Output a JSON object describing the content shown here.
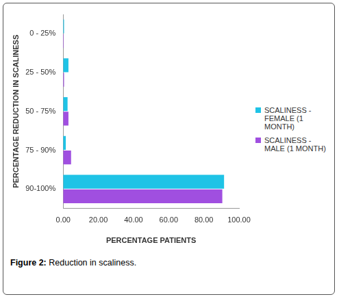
{
  "chart_data": {
    "type": "bar",
    "orientation": "horizontal",
    "caption": "Figure 2: Reduction in scaliness.",
    "xlabel": "PERCENTAGE PATIENTS",
    "ylabel": "PERCENTAGE REDUCTION IN SCALINESS",
    "categories": [
      "0 - 25%",
      "25 - 50%",
      "50 - 75%",
      "75 - 90%",
      "90-100%"
    ],
    "series": [
      {
        "name": "SCALINESS - FEMALE (1 MONTH)",
        "color": "#1fc3e6",
        "values": [
          0.5,
          3.0,
          2.5,
          1.5,
          91.5
        ]
      },
      {
        "name": "SCALINESS - MALE (1 MONTH)",
        "color": "#a04fe0",
        "values": [
          0.3,
          0.5,
          3.0,
          4.5,
          90.5
        ]
      }
    ],
    "xlim": [
      0,
      100
    ],
    "xticks": [
      {
        "value": 0,
        "label": "0.00"
      },
      {
        "value": 20,
        "label": "20.00"
      },
      {
        "value": 40,
        "label": "40.00"
      },
      {
        "value": 60,
        "label": "60.00"
      },
      {
        "value": 80,
        "label": "80.00"
      },
      {
        "value": 100,
        "label": "100.00"
      }
    ],
    "grid": false,
    "legend": "right"
  }
}
